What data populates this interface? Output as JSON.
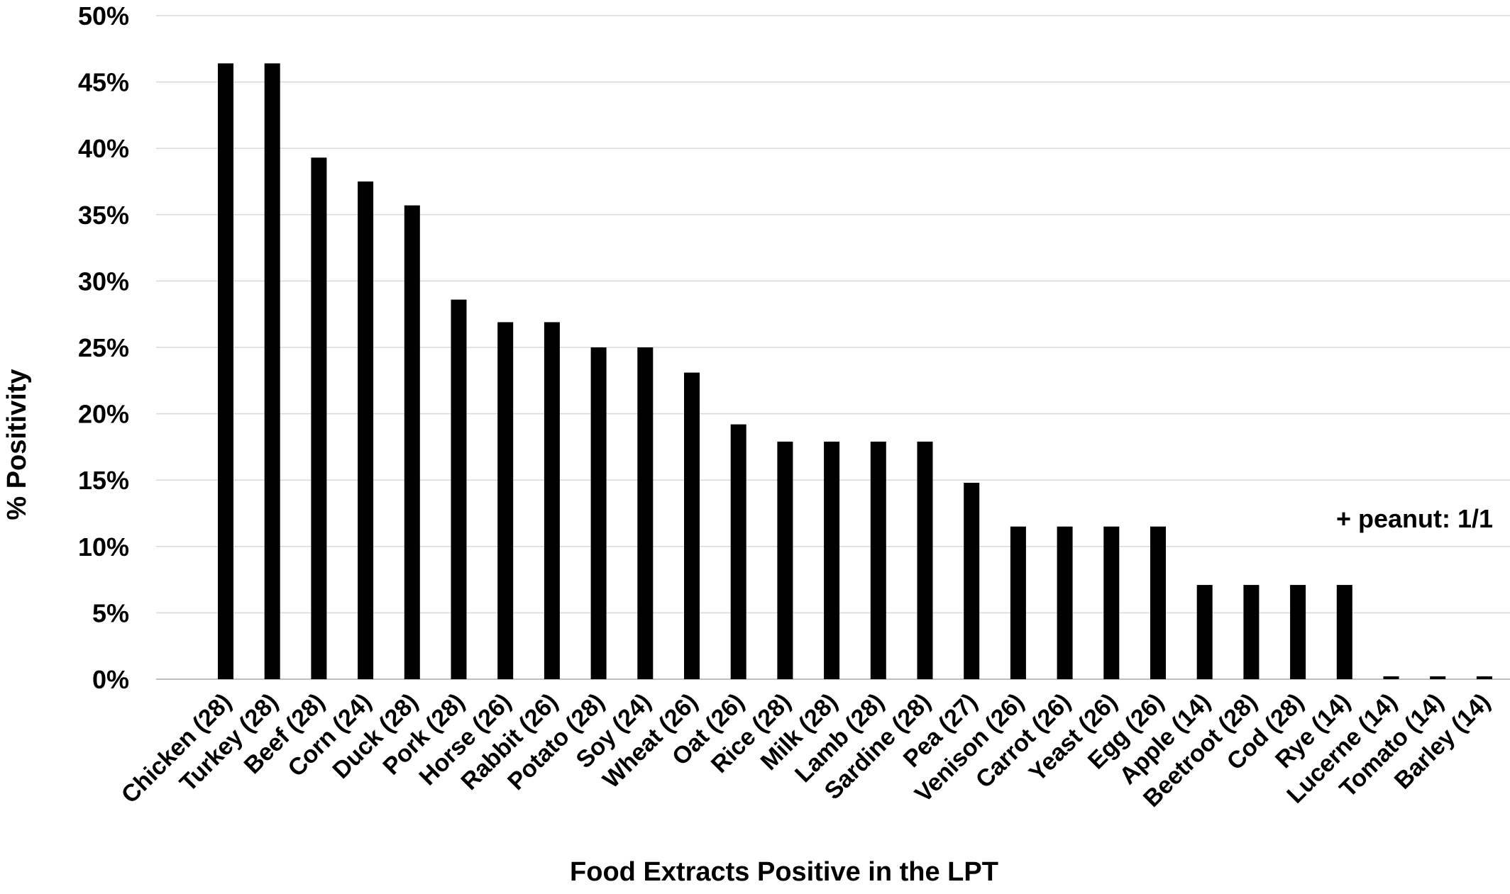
{
  "chart_data": {
    "type": "bar",
    "title": "",
    "xlabel": "Food Extracts Positive in the LPT",
    "ylabel": "% Positivity",
    "ylim": [
      0,
      50
    ],
    "yticks": [
      "0%",
      "5%",
      "10%",
      "15%",
      "20%",
      "25%",
      "30%",
      "35%",
      "40%",
      "45%",
      "50%"
    ],
    "grid": true,
    "legend": "none",
    "annotation": "+ peanut: 1/1",
    "bar_color": "#000000",
    "grid_color": "#d9d9d9",
    "categories": [
      "Chicken (28)",
      "Turkey (28)",
      "Beef (28)",
      "Corn (24)",
      "Duck (28)",
      "Pork (28)",
      "Horse (26)",
      "Rabbit (26)",
      "Potato (28)",
      "Soy (24)",
      "Wheat (26)",
      "Oat (26)",
      "Rice (28)",
      "Milk (28)",
      "Lamb (28)",
      "Sardine (28)",
      "Pea (27)",
      "Venison (26)",
      "Carrot (26)",
      "Yeast (26)",
      "Egg (26)",
      "Apple (14)",
      "Beetroot (28)",
      "Cod (28)",
      "Rye (14)",
      "Lucerne (14)",
      "Tomato (14)",
      "Barley (14)"
    ],
    "values": [
      46.4,
      46.4,
      39.3,
      37.5,
      35.7,
      28.6,
      26.9,
      26.9,
      25.0,
      25.0,
      23.1,
      19.2,
      17.9,
      17.9,
      17.9,
      17.9,
      14.8,
      11.5,
      11.5,
      11.5,
      11.5,
      7.1,
      7.1,
      7.1,
      7.1,
      0,
      0,
      0
    ]
  }
}
